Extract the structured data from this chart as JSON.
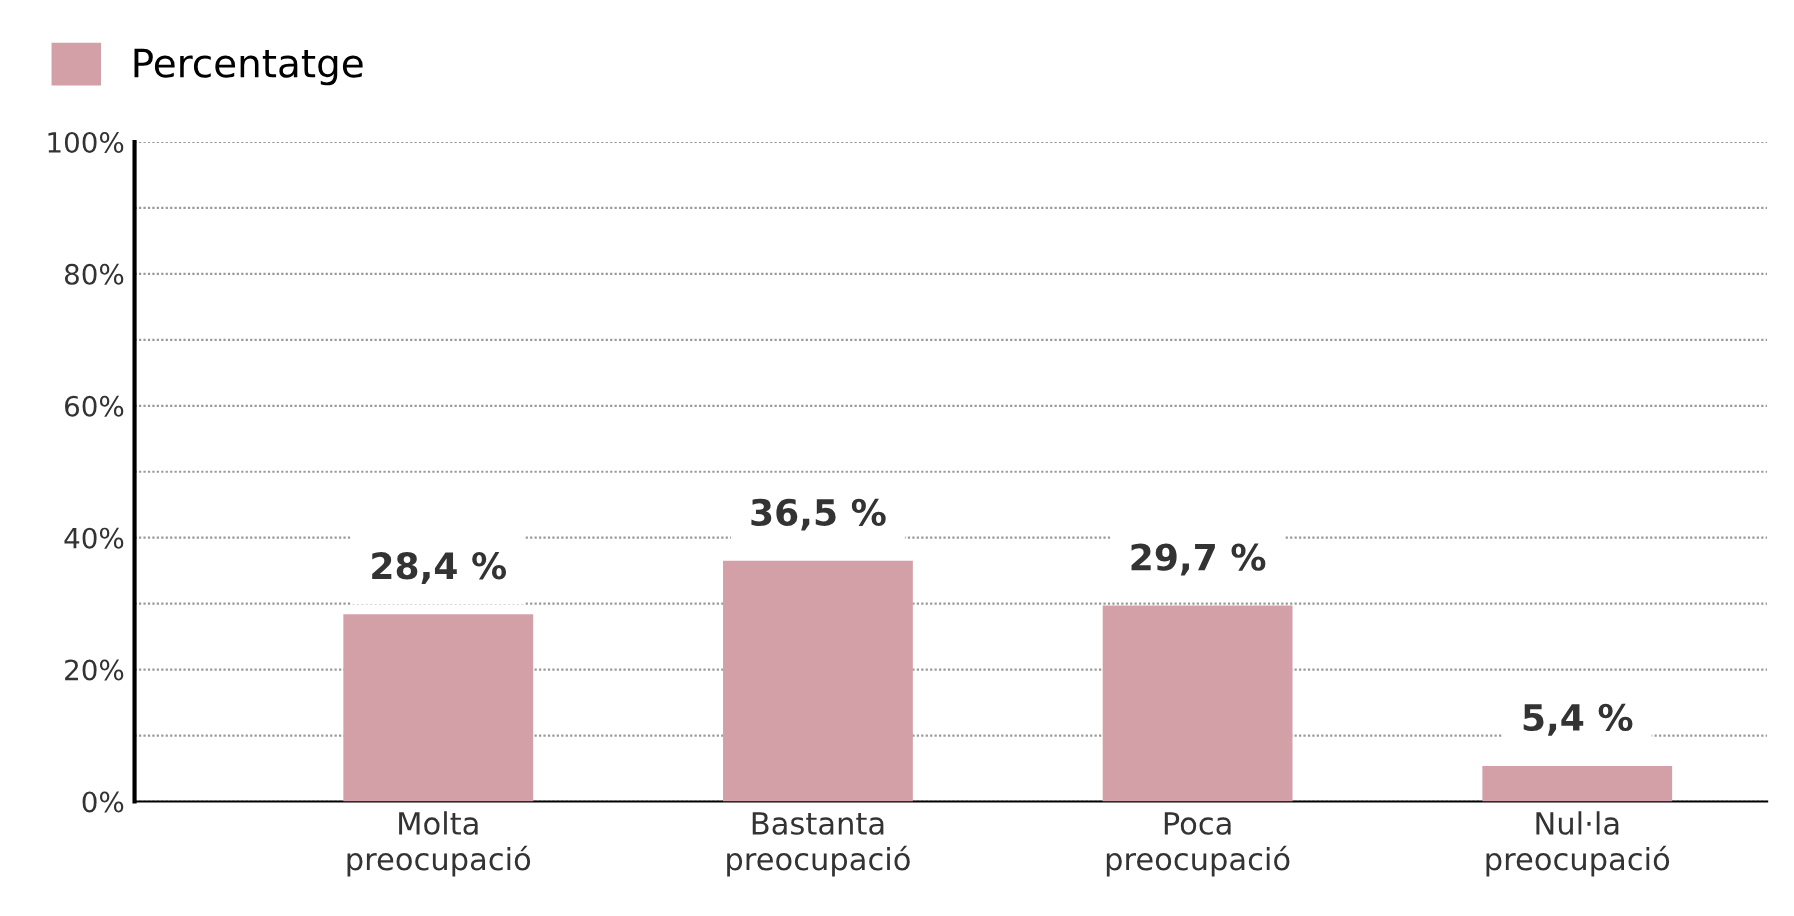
{
  "chart_data": {
    "type": "bar",
    "categories": [
      "Molta\npreocupació",
      "Bastanta\npreocupació",
      "Poca\npreocupació",
      "Nul·la\npreocupació"
    ],
    "series": [
      {
        "name": "Percentatge",
        "color": "#d4a0a8",
        "values": [
          28.4,
          36.5,
          29.7,
          5.4
        ],
        "value_labels": [
          "28,4 %",
          "36,5 %",
          "29,7 %",
          "5,4 %"
        ]
      }
    ],
    "ylim": [
      0,
      100
    ],
    "yticks": [
      {
        "value": 0,
        "label": "0%"
      },
      {
        "value": 10,
        "label": null
      },
      {
        "value": 20,
        "label": "20%"
      },
      {
        "value": 30,
        "label": null
      },
      {
        "value": 40,
        "label": "40%"
      },
      {
        "value": 50,
        "label": null
      },
      {
        "value": 60,
        "label": "60%"
      },
      {
        "value": 70,
        "label": null
      },
      {
        "value": 80,
        "label": "80%"
      },
      {
        "value": 90,
        "label": null
      },
      {
        "value": 100,
        "label": "100%"
      }
    ],
    "grid": "y",
    "legend": "top left"
  }
}
